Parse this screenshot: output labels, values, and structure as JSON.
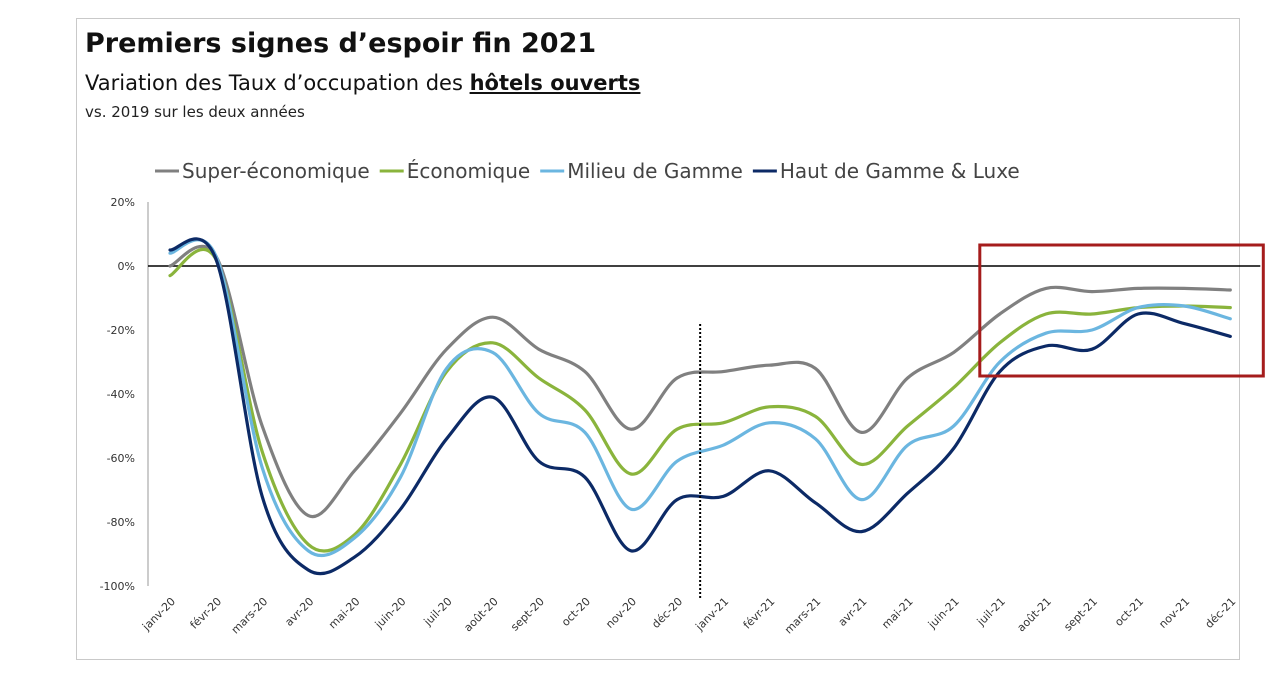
{
  "header": {
    "title": "Premiers signes d’espoir fin 2021",
    "subtitle_prefix": "Variation des Taux d’occupation des ",
    "subtitle_highlight": "hôtels ouverts",
    "note": "vs. 2019 sur les deux années"
  },
  "chart_data": {
    "type": "line",
    "title": "Premiers signes d’espoir fin 2021",
    "xlabel": "",
    "ylabel": "",
    "ylim": [
      -100,
      20
    ],
    "yticks": [
      20,
      0,
      -20,
      -40,
      -60,
      -80,
      -100
    ],
    "ytick_labels": [
      "20%",
      "0%",
      "-20%",
      "-40%",
      "-60%",
      "-80%",
      "-100%"
    ],
    "categories": [
      "janv-20",
      "févr-20",
      "mars-20",
      "avr-20",
      "mai-20",
      "juin-20",
      "juil-20",
      "août-20",
      "sept-20",
      "oct-20",
      "nov-20",
      "déc-20",
      "janv-21",
      "févr-21",
      "mars-21",
      "avr-21",
      "mai-21",
      "juin-21",
      "juil-21",
      "août-21",
      "sept-21",
      "oct-21",
      "nov-21",
      "déc-21"
    ],
    "grid": false,
    "legend_position": "top",
    "zero_line": true,
    "divider_between": [
      "déc-20",
      "janv-21"
    ],
    "highlight_box_range": [
      "juil-21",
      "déc-21"
    ],
    "series": [
      {
        "name": "Super-économique",
        "color": "#808080",
        "values": [
          0,
          3,
          -50,
          -78,
          -64,
          -46,
          -26,
          -16,
          -26,
          -33,
          -51,
          -35,
          -33,
          -31,
          -32,
          -52,
          -35,
          -27,
          -15,
          -7,
          -8,
          -7,
          -7,
          -7.5
        ]
      },
      {
        "name": "Économique",
        "color": "#8ab43c",
        "values": [
          -3,
          2,
          -58,
          -87,
          -84,
          -62,
          -33,
          -24,
          -35,
          -45,
          -65,
          -51,
          -49,
          -44,
          -47,
          -62,
          -50,
          -38,
          -24,
          -15,
          -15,
          -13,
          -12.5,
          -13
        ]
      },
      {
        "name": "Milieu de Gamme",
        "color": "#6bb6e0",
        "values": [
          4,
          3,
          -63,
          -89,
          -85,
          -66,
          -32,
          -27,
          -46,
          -52,
          -76,
          -61,
          -56,
          -49,
          -54,
          -73,
          -56,
          -50,
          -30,
          -21,
          -20,
          -13,
          -12.5,
          -16.5
        ]
      },
      {
        "name": "Haut de Gamme & Luxe",
        "color": "#0c2a66",
        "values": [
          5,
          2,
          -72,
          -95,
          -91,
          -76,
          -54,
          -41,
          -61,
          -66,
          -89,
          -73,
          -72,
          -64,
          -74,
          -83,
          -71,
          -57,
          -33,
          -25,
          -26,
          -15,
          -18,
          -22
        ]
      }
    ]
  }
}
